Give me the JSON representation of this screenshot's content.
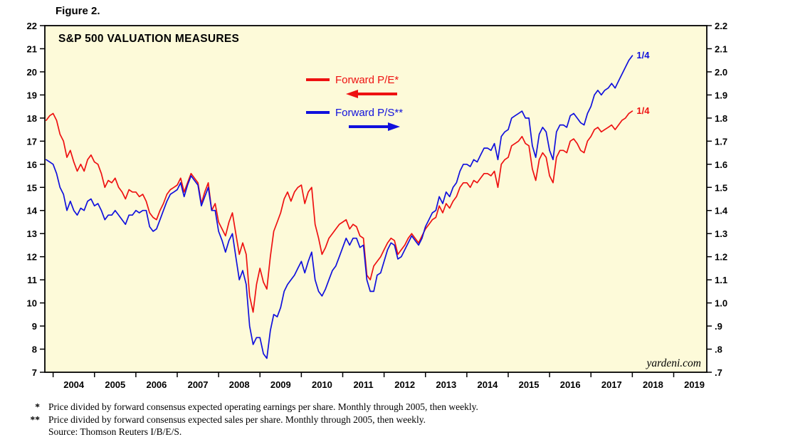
{
  "figure_label": "Figure 2.",
  "chart_data": {
    "type": "line",
    "title": "S&P 500 VALUATION MEASURES",
    "watermark": "yardeni.com",
    "x_range": [
      2003.8,
      2019.8
    ],
    "x_axis": {
      "tick_values": [
        2004,
        2005,
        2006,
        2007,
        2008,
        2009,
        2010,
        2011,
        2012,
        2013,
        2014,
        2015,
        2016,
        2017,
        2018,
        2019
      ],
      "tick_labels": [
        "2004",
        "2005",
        "2006",
        "2007",
        "2008",
        "2009",
        "2010",
        "2011",
        "2012",
        "2013",
        "2014",
        "2015",
        "2016",
        "2017",
        "2018",
        "2019"
      ]
    },
    "left_axis": {
      "range": [
        7,
        22
      ],
      "tick_values": [
        7,
        8,
        9,
        10,
        11,
        12,
        13,
        14,
        15,
        16,
        17,
        18,
        19,
        20,
        21,
        22
      ],
      "tick_labels": [
        "7",
        "8",
        "9",
        "10",
        "11",
        "12",
        "13",
        "14",
        "15",
        "16",
        "17",
        "18",
        "19",
        "20",
        "21",
        "22"
      ]
    },
    "right_axis": {
      "range": [
        0.7,
        2.2
      ],
      "tick_values": [
        0.7,
        0.8,
        0.9,
        1.0,
        1.1,
        1.2,
        1.3,
        1.4,
        1.5,
        1.6,
        1.7,
        1.8,
        1.9,
        2.0,
        2.1,
        2.2
      ],
      "tick_labels": [
        ".7",
        ".8",
        ".9",
        "1.0",
        "1.1",
        "1.2",
        "1.3",
        "1.4",
        "1.5",
        "1.6",
        "1.7",
        "1.8",
        "1.9",
        "2.0",
        "2.1",
        "2.2"
      ]
    },
    "colors": {
      "plot_bg": "#fdfad9",
      "frame": "#000000"
    },
    "series": [
      {
        "key": "forward-pe",
        "name": "Forward P/E*",
        "color": "#ee1111",
        "axis": "left",
        "end_label": "1/4",
        "x_start": 2003.8333,
        "x_step": 0.0833333,
        "values": [
          17.9,
          18.1,
          18.2,
          17.9,
          17.3,
          17.0,
          16.3,
          16.6,
          16.1,
          15.7,
          16.0,
          15.7,
          16.2,
          16.4,
          16.1,
          16.0,
          15.6,
          15.0,
          15.3,
          15.2,
          15.4,
          15.0,
          14.8,
          14.5,
          14.9,
          14.8,
          14.8,
          14.6,
          14.7,
          14.4,
          13.9,
          13.7,
          13.6,
          14.0,
          14.3,
          14.7,
          14.9,
          15.0,
          15.1,
          15.4,
          14.8,
          15.2,
          15.6,
          15.4,
          15.2,
          14.3,
          14.8,
          15.2,
          14.0,
          14.3,
          13.5,
          13.2,
          12.9,
          13.5,
          13.9,
          13.0,
          12.1,
          12.6,
          12.1,
          10.3,
          9.6,
          10.8,
          11.5,
          10.9,
          10.6,
          12.0,
          13.1,
          13.5,
          13.9,
          14.5,
          14.8,
          14.4,
          14.8,
          15.0,
          15.1,
          14.3,
          14.8,
          15.0,
          13.4,
          12.8,
          12.1,
          12.4,
          12.8,
          13.0,
          13.2,
          13.4,
          13.5,
          13.6,
          13.2,
          13.4,
          13.3,
          12.9,
          12.8,
          11.2,
          11.0,
          11.6,
          11.8,
          12.0,
          12.3,
          12.6,
          12.8,
          12.7,
          12.1,
          12.3,
          12.5,
          12.8,
          13.0,
          12.8,
          12.6,
          12.9,
          13.2,
          13.4,
          13.6,
          13.7,
          14.2,
          13.9,
          14.3,
          14.1,
          14.4,
          14.6,
          15.0,
          15.2,
          15.2,
          15.0,
          15.3,
          15.2,
          15.4,
          15.6,
          15.6,
          15.5,
          15.7,
          15.0,
          16.0,
          16.2,
          16.3,
          16.8,
          16.9,
          17.0,
          17.2,
          16.9,
          16.8,
          15.8,
          15.3,
          16.2,
          16.5,
          16.3,
          15.5,
          15.2,
          16.3,
          16.6,
          16.6,
          16.5,
          17.0,
          17.1,
          16.9,
          16.6,
          16.5,
          17.0,
          17.2,
          17.5,
          17.6,
          17.4,
          17.5,
          17.6,
          17.7,
          17.5,
          17.7,
          17.9,
          18.0,
          18.2,
          18.3
        ]
      },
      {
        "key": "forward-ps",
        "name": "Forward P/S**",
        "color": "#1010dd",
        "axis": "right",
        "end_label": "1/4",
        "x_start": 2003.8333,
        "x_step": 0.0833333,
        "values": [
          1.62,
          1.61,
          1.6,
          1.56,
          1.5,
          1.47,
          1.4,
          1.44,
          1.4,
          1.38,
          1.41,
          1.4,
          1.44,
          1.45,
          1.42,
          1.43,
          1.4,
          1.36,
          1.38,
          1.38,
          1.4,
          1.38,
          1.36,
          1.34,
          1.38,
          1.38,
          1.4,
          1.39,
          1.4,
          1.4,
          1.33,
          1.31,
          1.32,
          1.36,
          1.4,
          1.44,
          1.47,
          1.48,
          1.49,
          1.52,
          1.46,
          1.51,
          1.55,
          1.53,
          1.51,
          1.42,
          1.46,
          1.5,
          1.4,
          1.4,
          1.31,
          1.27,
          1.22,
          1.27,
          1.3,
          1.2,
          1.1,
          1.14,
          1.08,
          0.9,
          0.82,
          0.85,
          0.85,
          0.78,
          0.76,
          0.88,
          0.95,
          0.94,
          0.98,
          1.05,
          1.08,
          1.1,
          1.12,
          1.15,
          1.18,
          1.13,
          1.18,
          1.22,
          1.1,
          1.05,
          1.03,
          1.06,
          1.1,
          1.14,
          1.16,
          1.2,
          1.24,
          1.28,
          1.25,
          1.28,
          1.28,
          1.24,
          1.25,
          1.1,
          1.05,
          1.05,
          1.12,
          1.13,
          1.18,
          1.23,
          1.26,
          1.25,
          1.19,
          1.2,
          1.23,
          1.26,
          1.29,
          1.27,
          1.25,
          1.28,
          1.33,
          1.36,
          1.39,
          1.4,
          1.46,
          1.43,
          1.48,
          1.46,
          1.5,
          1.52,
          1.57,
          1.6,
          1.6,
          1.59,
          1.62,
          1.61,
          1.64,
          1.67,
          1.67,
          1.66,
          1.69,
          1.62,
          1.72,
          1.74,
          1.75,
          1.8,
          1.81,
          1.82,
          1.83,
          1.8,
          1.8,
          1.68,
          1.63,
          1.73,
          1.76,
          1.74,
          1.66,
          1.62,
          1.74,
          1.77,
          1.77,
          1.76,
          1.81,
          1.82,
          1.8,
          1.78,
          1.77,
          1.82,
          1.85,
          1.9,
          1.92,
          1.9,
          1.92,
          1.93,
          1.95,
          1.93,
          1.96,
          1.99,
          2.02,
          2.05,
          2.07
        ]
      }
    ]
  },
  "footnotes": [
    {
      "marker": "*",
      "text": "Price divided by forward consensus expected operating earnings per share. Monthly through 2005, then weekly."
    },
    {
      "marker": "**",
      "text": "Price divided by forward consensus expected sales per share. Monthly through 2005, then weekly."
    },
    {
      "marker": "",
      "text": "Source: Thomson Reuters I/B/E/S."
    }
  ]
}
